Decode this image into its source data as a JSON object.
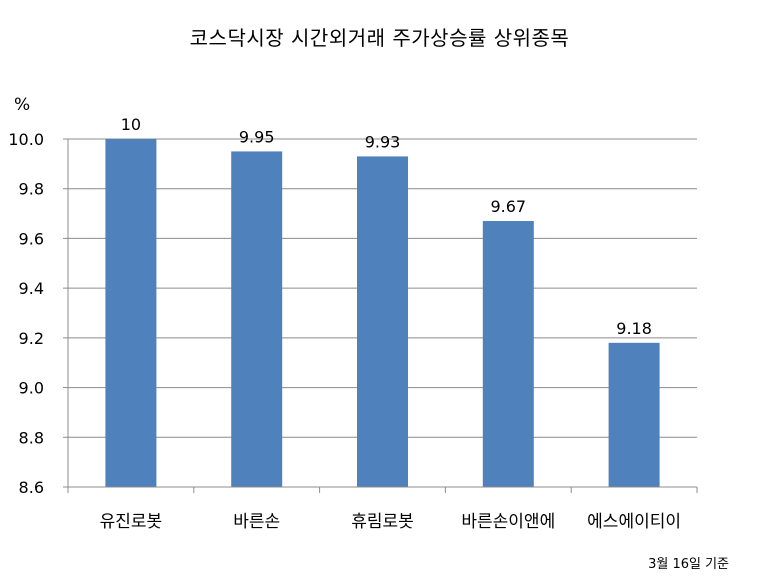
{
  "chart_data": {
    "type": "bar",
    "title": "코스닥시장 시간외거래  주가상승률 상위종목",
    "ylabel": "%",
    "categories": [
      "유진로봇",
      "바른손",
      "휴림로봇",
      "바른손이앤에",
      "에스에이티이"
    ],
    "series": [
      {
        "values": [
          10,
          9.95,
          9.93,
          9.67,
          9.18
        ],
        "data_labels": [
          "10",
          "9.95",
          "9.93",
          "9.67",
          "9.18"
        ]
      }
    ],
    "ylim": [
      8.6,
      10.0
    ],
    "yticks": [
      "8.6",
      "8.8",
      "9.0",
      "9.2",
      "9.4",
      "9.6",
      "9.8",
      "10.0"
    ],
    "grid": true,
    "bar_color": "#4F81BD",
    "note": "3월 16일 기준"
  }
}
